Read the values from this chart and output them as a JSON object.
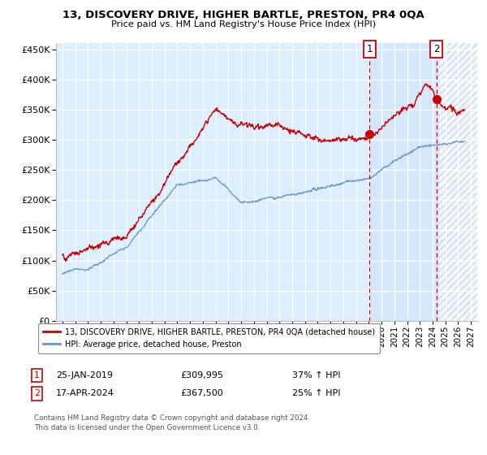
{
  "title": "13, DISCOVERY DRIVE, HIGHER BARTLE, PRESTON, PR4 0QA",
  "subtitle": "Price paid vs. HM Land Registry's House Price Index (HPI)",
  "red_color": "#cc0000",
  "blue_color": "#6699cc",
  "plot_bg_color": "#ddeeff",
  "grid_color": "#ffffff",
  "bg_color": "#ffffff",
  "sale1_x": 2019.07,
  "sale1_y": 309995,
  "sale2_x": 2024.29,
  "sale2_y": 367500,
  "legend_line1": "13, DISCOVERY DRIVE, HIGHER BARTLE, PRESTON, PR4 0QA (detached house)",
  "legend_line2": "HPI: Average price, detached house, Preston",
  "table_row1_num": "1",
  "table_row1_date": "25-JAN-2019",
  "table_row1_price": "£309,995",
  "table_row1_hpi": "37% ↑ HPI",
  "table_row2_num": "2",
  "table_row2_date": "17-APR-2024",
  "table_row2_price": "£367,500",
  "table_row2_hpi": "25% ↑ HPI",
  "footnote_line1": "Contains HM Land Registry data © Crown copyright and database right 2024.",
  "footnote_line2": "This data is licensed under the Open Government Licence v3.0.",
  "xmin": 1994.5,
  "xmax": 2027.5,
  "ymin": 0,
  "ymax": 460000,
  "yticks": [
    0,
    50000,
    100000,
    150000,
    200000,
    250000,
    300000,
    350000,
    400000,
    450000
  ],
  "xticks": [
    1995,
    1996,
    1997,
    1998,
    1999,
    2000,
    2001,
    2002,
    2003,
    2004,
    2005,
    2006,
    2007,
    2008,
    2009,
    2010,
    2011,
    2012,
    2013,
    2014,
    2015,
    2016,
    2017,
    2018,
    2019,
    2020,
    2021,
    2022,
    2023,
    2024,
    2025,
    2026,
    2027
  ],
  "hatch_start": 2024.5
}
